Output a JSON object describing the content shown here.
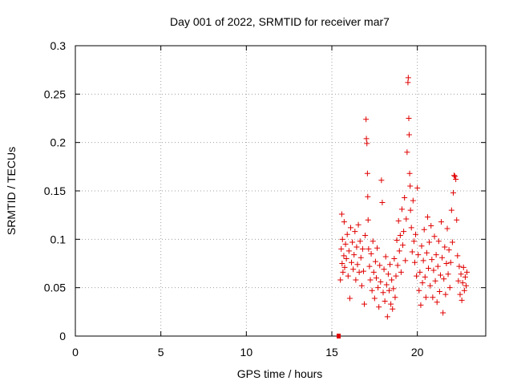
{
  "chart_data": {
    "type": "scatter",
    "title": "Day 001 of 2022, SRMTID for receiver mar7",
    "xlabel": "GPS time / hours",
    "ylabel": "SRMTID / TECUs",
    "xlim": [
      0,
      24
    ],
    "ylim": [
      0,
      0.3
    ],
    "xticks": [
      0,
      5,
      10,
      15,
      20
    ],
    "xtick_labels": [
      "0",
      "5",
      "10",
      "15",
      "20"
    ],
    "yticks": [
      0,
      0.05,
      0.1,
      0.15,
      0.2,
      0.25,
      0.3
    ],
    "ytick_labels": [
      "0",
      "0.05",
      "0.1",
      "0.15",
      "0.2",
      "0.25",
      "0.3"
    ],
    "grid": true,
    "marker": "+",
    "marker_color": "#e00000",
    "zero_marker": {
      "x": 15.4,
      "y": 0.0
    },
    "series": [
      {
        "name": "SRMTID",
        "points": [
          [
            15.5,
            0.058
          ],
          [
            15.55,
            0.09
          ],
          [
            15.58,
            0.126
          ],
          [
            15.6,
            0.075
          ],
          [
            15.62,
            0.1
          ],
          [
            15.65,
            0.066
          ],
          [
            15.7,
            0.083
          ],
          [
            15.72,
            0.118
          ],
          [
            15.75,
            0.071
          ],
          [
            15.8,
            0.095
          ],
          [
            15.85,
            0.08
          ],
          [
            15.9,
            0.105
          ],
          [
            15.95,
            0.062
          ],
          [
            16.0,
            0.088
          ],
          [
            16.05,
            0.039
          ],
          [
            16.1,
            0.112
          ],
          [
            16.15,
            0.076
          ],
          [
            16.2,
            0.097
          ],
          [
            16.25,
            0.069
          ],
          [
            16.3,
            0.084
          ],
          [
            16.35,
            0.108
          ],
          [
            16.4,
            0.058
          ],
          [
            16.45,
            0.092
          ],
          [
            16.5,
            0.074
          ],
          [
            16.55,
            0.115
          ],
          [
            16.6,
            0.066
          ],
          [
            16.65,
            0.098
          ],
          [
            16.7,
            0.081
          ],
          [
            16.75,
            0.052
          ],
          [
            16.8,
            0.09
          ],
          [
            16.85,
            0.067
          ],
          [
            16.9,
            0.033
          ],
          [
            16.95,
            0.104
          ],
          [
            17.0,
            0.224
          ],
          [
            17.02,
            0.204
          ],
          [
            17.05,
            0.199
          ],
          [
            17.08,
            0.168
          ],
          [
            17.1,
            0.144
          ],
          [
            17.12,
            0.12
          ],
          [
            17.15,
            0.09
          ],
          [
            17.2,
            0.072
          ],
          [
            17.25,
            0.058
          ],
          [
            17.3,
            0.085
          ],
          [
            17.35,
            0.047
          ],
          [
            17.4,
            0.098
          ],
          [
            17.45,
            0.066
          ],
          [
            17.5,
            0.039
          ],
          [
            17.55,
            0.077
          ],
          [
            17.6,
            0.06
          ],
          [
            17.65,
            0.091
          ],
          [
            17.7,
            0.05
          ],
          [
            17.75,
            0.03
          ],
          [
            17.8,
            0.073
          ],
          [
            17.85,
            0.056
          ],
          [
            17.9,
            0.161
          ],
          [
            17.95,
            0.138
          ],
          [
            18.0,
            0.045
          ],
          [
            18.05,
            0.069
          ],
          [
            18.1,
            0.036
          ],
          [
            18.15,
            0.082
          ],
          [
            18.2,
            0.053
          ],
          [
            18.25,
            0.02
          ],
          [
            18.3,
            0.064
          ],
          [
            18.35,
            0.047
          ],
          [
            18.4,
            0.074
          ],
          [
            18.45,
            0.033
          ],
          [
            18.5,
            0.058
          ],
          [
            18.55,
            0.028
          ],
          [
            18.6,
            0.049
          ],
          [
            18.65,
            0.08
          ],
          [
            18.7,
            0.04
          ],
          [
            18.75,
            0.062
          ],
          [
            18.8,
            0.099
          ],
          [
            18.85,
            0.073
          ],
          [
            18.9,
            0.119
          ],
          [
            18.95,
            0.088
          ],
          [
            19.0,
            0.104
          ],
          [
            19.05,
            0.066
          ],
          [
            19.1,
            0.131
          ],
          [
            19.15,
            0.094
          ],
          [
            19.2,
            0.108
          ],
          [
            19.25,
            0.143
          ],
          [
            19.3,
            0.078
          ],
          [
            19.35,
            0.121
          ],
          [
            19.4,
            0.19
          ],
          [
            19.45,
            0.262
          ],
          [
            19.47,
            0.267
          ],
          [
            19.5,
            0.225
          ],
          [
            19.52,
            0.208
          ],
          [
            19.55,
            0.168
          ],
          [
            19.58,
            0.155
          ],
          [
            19.6,
            0.13
          ],
          [
            19.65,
            0.112
          ],
          [
            19.7,
            0.087
          ],
          [
            19.75,
            0.14
          ],
          [
            19.8,
            0.098
          ],
          [
            19.85,
            0.076
          ],
          [
            19.9,
            0.105
          ],
          [
            19.95,
            0.062
          ],
          [
            20.0,
            0.153
          ],
          [
            20.05,
            0.084
          ],
          [
            20.1,
            0.047
          ],
          [
            20.15,
            0.066
          ],
          [
            20.2,
            0.032
          ],
          [
            20.25,
            0.093
          ],
          [
            20.3,
            0.055
          ],
          [
            20.35,
            0.078
          ],
          [
            20.4,
            0.11
          ],
          [
            20.45,
            0.061
          ],
          [
            20.5,
            0.04
          ],
          [
            20.55,
            0.086
          ],
          [
            20.6,
            0.123
          ],
          [
            20.65,
            0.07
          ],
          [
            20.7,
            0.097
          ],
          [
            20.75,
            0.052
          ],
          [
            20.8,
            0.114
          ],
          [
            20.85,
            0.079
          ],
          [
            20.9,
            0.04
          ],
          [
            20.95,
            0.068
          ],
          [
            21.0,
            0.103
          ],
          [
            21.05,
            0.057
          ],
          [
            21.1,
            0.084
          ],
          [
            21.15,
            0.035
          ],
          [
            21.2,
            0.072
          ],
          [
            21.25,
            0.098
          ],
          [
            21.3,
            0.046
          ],
          [
            21.35,
            0.063
          ],
          [
            21.4,
            0.118
          ],
          [
            21.45,
            0.081
          ],
          [
            21.5,
            0.024
          ],
          [
            21.55,
            0.059
          ],
          [
            21.6,
            0.092
          ],
          [
            21.65,
            0.043
          ],
          [
            21.7,
            0.075
          ],
          [
            21.75,
            0.111
          ],
          [
            21.8,
            0.064
          ],
          [
            21.85,
            0.089
          ],
          [
            21.9,
            0.05
          ],
          [
            21.95,
            0.076
          ],
          [
            22.0,
            0.13
          ],
          [
            22.05,
            0.097
          ],
          [
            22.1,
            0.148
          ],
          [
            22.15,
            0.166
          ],
          [
            22.2,
            0.165
          ],
          [
            22.25,
            0.162
          ],
          [
            22.3,
            0.12
          ],
          [
            22.35,
            0.083
          ],
          [
            22.4,
            0.057
          ],
          [
            22.45,
            0.072
          ],
          [
            22.5,
            0.043
          ],
          [
            22.55,
            0.064
          ],
          [
            22.6,
            0.037
          ],
          [
            22.65,
            0.055
          ],
          [
            22.7,
            0.071
          ],
          [
            22.75,
            0.047
          ],
          [
            22.8,
            0.061
          ],
          [
            22.85,
            0.052
          ],
          [
            22.9,
            0.066
          ]
        ]
      }
    ]
  }
}
